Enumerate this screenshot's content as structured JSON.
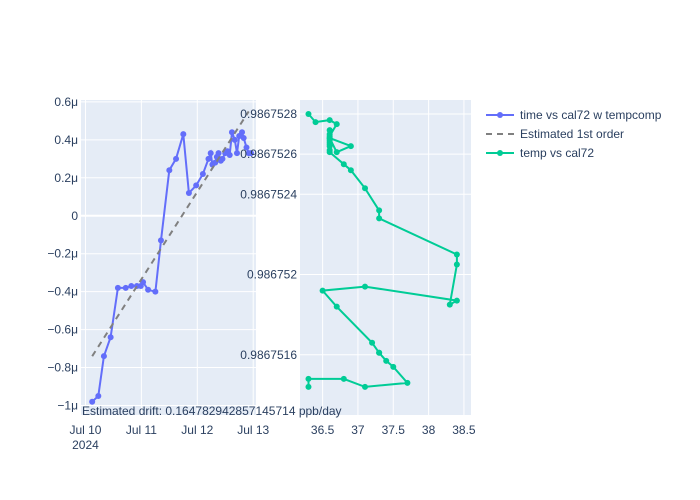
{
  "colors": {
    "plot_bg": "#E5ECF6",
    "grid": "#ffffff",
    "text": "#2a3f5f",
    "series_time": "#636EFA",
    "series_fit": "#808080",
    "series_temp": "#00CC96"
  },
  "annotation": "Estimated drift:  0.164782942857145714 ppb/day",
  "legend": [
    {
      "label": "time vs cal72 w tempcomp"
    },
    {
      "label": "Estimated 1st order"
    },
    {
      "label": "temp vs cal72"
    }
  ],
  "chart_data": [
    {
      "type": "line",
      "xlabel": "",
      "ylabel": "",
      "x_ticks": [
        {
          "value": 0,
          "label": "Jul 10",
          "sublabel": "2024"
        },
        {
          "value": 1,
          "label": "Jul 11"
        },
        {
          "value": 2,
          "label": "Jul 12"
        },
        {
          "value": 3,
          "label": "Jul 13"
        }
      ],
      "x_range": [
        -0.08,
        3.05
      ],
      "y_ticks": [
        {
          "value": 0.6,
          "label": "0.6μ"
        },
        {
          "value": 0.4,
          "label": "0.4μ"
        },
        {
          "value": 0.2,
          "label": "0.2μ"
        },
        {
          "value": 0,
          "label": "0"
        },
        {
          "value": -0.2,
          "label": "−0.2μ"
        },
        {
          "value": -0.4,
          "label": "−0.4μ"
        },
        {
          "value": -0.6,
          "label": "−0.6μ"
        },
        {
          "value": -0.8,
          "label": "−0.8μ"
        },
        {
          "value": -1.0,
          "label": "−1μ"
        }
      ],
      "y_range": [
        -1.05,
        0.61
      ],
      "y_unit": "μ",
      "series": [
        {
          "name": "time vs cal72 w tempcomp",
          "mode": "lines+markers",
          "x": [
            0.12,
            0.23,
            0.33,
            0.45,
            0.58,
            0.72,
            0.82,
            0.92,
            0.99,
            1.03,
            1.12,
            1.25,
            1.35,
            1.5,
            1.62,
            1.75,
            1.85,
            1.98,
            2.1,
            2.2,
            2.24,
            2.27,
            2.32,
            2.35,
            2.38,
            2.42,
            2.45,
            2.5,
            2.54,
            2.58,
            2.62,
            2.67,
            2.71,
            2.75,
            2.8,
            2.83,
            2.88,
            2.92,
            2.96
          ],
          "y": [
            -0.98,
            -0.95,
            -0.74,
            -0.64,
            -0.38,
            -0.38,
            -0.37,
            -0.37,
            -0.37,
            -0.35,
            -0.39,
            -0.4,
            -0.13,
            0.24,
            0.3,
            0.43,
            0.12,
            0.16,
            0.22,
            0.3,
            0.33,
            0.27,
            0.28,
            0.31,
            0.33,
            0.29,
            0.3,
            0.33,
            0.34,
            0.32,
            0.44,
            0.4,
            0.33,
            0.42,
            0.44,
            0.41,
            0.36,
            0.33,
            0.33
          ]
        },
        {
          "name": "Estimated 1st order",
          "mode": "lines",
          "dash": "dash",
          "x": [
            0.12,
            2.92
          ],
          "y": [
            -0.74,
            0.55
          ]
        }
      ]
    },
    {
      "type": "scatter",
      "xlabel": "",
      "ylabel": "",
      "x_ticks": [
        {
          "value": 36.5,
          "label": "36.5"
        },
        {
          "value": 37,
          "label": "37"
        },
        {
          "value": 37.5,
          "label": "37.5"
        },
        {
          "value": 38,
          "label": "38"
        },
        {
          "value": 38.5,
          "label": "38.5"
        }
      ],
      "x_range": [
        36.18,
        38.6
      ],
      "y_ticks": [
        {
          "value": 0.9867516,
          "label": "0.9867516"
        },
        {
          "value": 0.986752,
          "label": "0.986752"
        },
        {
          "value": 0.9867524,
          "label": "0.9867524"
        },
        {
          "value": 0.9867526,
          "label": "0.9867526"
        },
        {
          "value": 0.9867528,
          "label": "0.9867528"
        }
      ],
      "y_range": [
        0.9867513,
        0.98675287
      ],
      "series": [
        {
          "name": "temp vs cal72",
          "mode": "lines+markers",
          "x": [
            36.3,
            36.3,
            36.8,
            37.1,
            37.7,
            37.5,
            37.4,
            37.3,
            37.3,
            37.2,
            36.7,
            36.5,
            37.1,
            38.4,
            38.3,
            38.4,
            38.4,
            37.3,
            37.3,
            37.1,
            36.9,
            36.8,
            36.6,
            36.6,
            36.6,
            36.6,
            36.6,
            36.6,
            36.6,
            36.7,
            36.9,
            36.6,
            36.6,
            36.6,
            36.6,
            36.7,
            36.6,
            36.4,
            36.3
          ],
          "y": [
            0.98675144,
            0.98675148,
            0.98675148,
            0.98675144,
            0.98675146,
            0.98675154,
            0.98675157,
            0.98675161,
            0.98675161,
            0.98675166,
            0.98675184,
            0.98675192,
            0.98675194,
            0.98675187,
            0.98675185,
            0.98675205,
            0.9867521,
            0.98675228,
            0.98675232,
            0.98675243,
            0.98675252,
            0.98675255,
            0.98675261,
            0.98675264,
            0.98675262,
            0.98675265,
            0.98675266,
            0.98675267,
            0.98675268,
            0.98675261,
            0.98675264,
            0.98675268,
            0.9867527,
            0.98675272,
            0.98675269,
            0.98675275,
            0.98675277,
            0.98675276,
            0.9867528
          ]
        }
      ]
    }
  ]
}
